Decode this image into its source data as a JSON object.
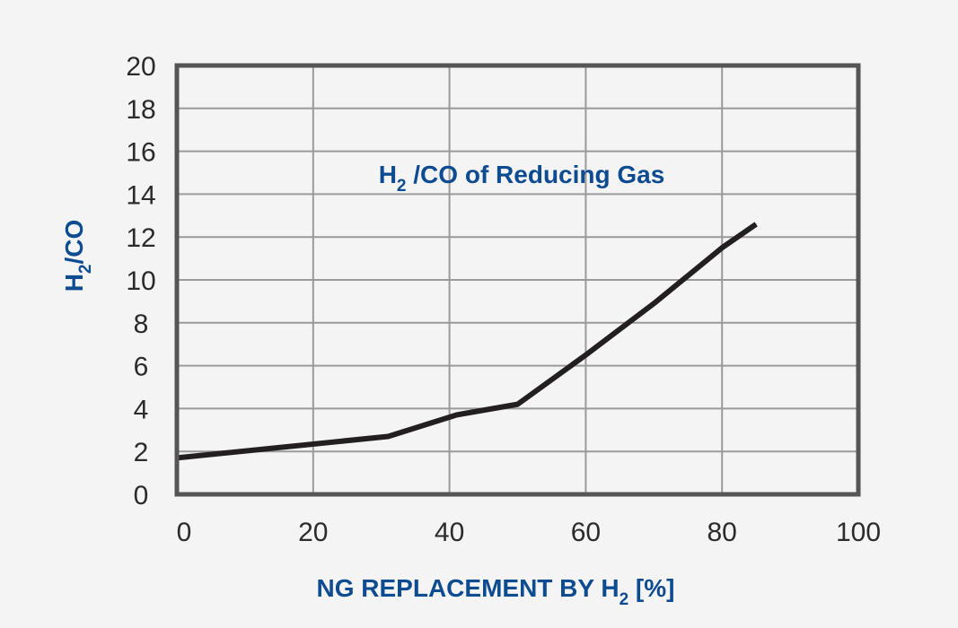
{
  "chart_data": {
    "type": "line",
    "title": "",
    "xlabel": {
      "main": "NG REPLACEMENT BY H",
      "subscript": "2",
      "suffix": " [%]"
    },
    "ylabel": {
      "main": "H",
      "subscript": "2",
      "suffix": "/CO"
    },
    "annotation": {
      "main": "H",
      "subscript": "2",
      "suffix": " /CO of Reducing Gas"
    },
    "xlim": [
      0,
      100
    ],
    "ylim": [
      0,
      20
    ],
    "x_ticks": [
      "0",
      "20",
      "40",
      "60",
      "80",
      "100"
    ],
    "y_ticks": [
      "0",
      "2",
      "4",
      "6",
      "8",
      "10",
      "12",
      "14",
      "16",
      "18",
      "20"
    ],
    "grid": true,
    "series": [
      {
        "x": [
          0,
          31,
          41,
          50,
          60,
          70,
          80,
          85
        ],
        "y": [
          1.7,
          2.7,
          3.7,
          4.2,
          6.5,
          8.9,
          11.5,
          12.6
        ]
      }
    ],
    "colors": {
      "line": "#231f20",
      "frame": "#555555",
      "grid": "#9a9a9a",
      "accent": "#0e4c92",
      "background": "#f4f4f4"
    }
  }
}
